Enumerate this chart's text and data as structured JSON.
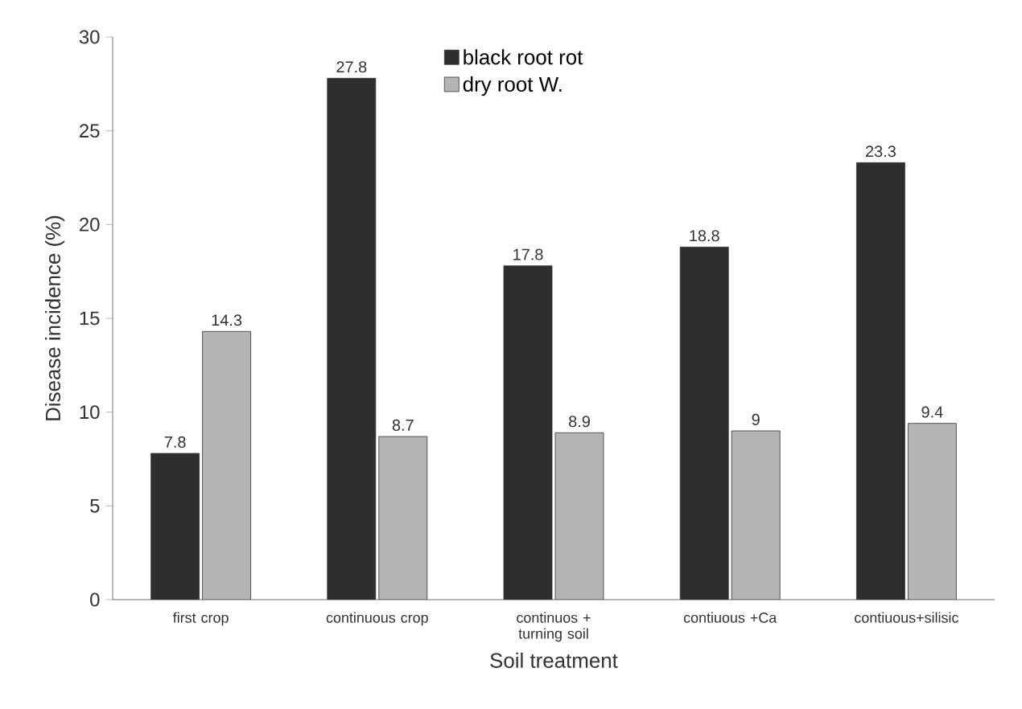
{
  "chart_data": {
    "type": "bar",
    "xlabel": "Soil treatment",
    "ylabel": "Disease incidence (%)",
    "categories": [
      "first crop",
      "continuous crop",
      "continuos + turning soil",
      "contiuous +Ca",
      "contiuous+silisic"
    ],
    "series": [
      {
        "name": "black root rot",
        "color": "#2e2e2e",
        "values": [
          7.8,
          27.8,
          17.8,
          18.8,
          23.3
        ]
      },
      {
        "name": "dry root W.",
        "color": "#b4b4b4",
        "values": [
          14.3,
          8.7,
          8.9,
          9,
          9.4
        ]
      }
    ],
    "ylim": [
      0,
      30
    ],
    "yticks": [
      0,
      5,
      10,
      15,
      20,
      25,
      30
    ],
    "data_labels": true,
    "legend": "top",
    "grid": false
  }
}
